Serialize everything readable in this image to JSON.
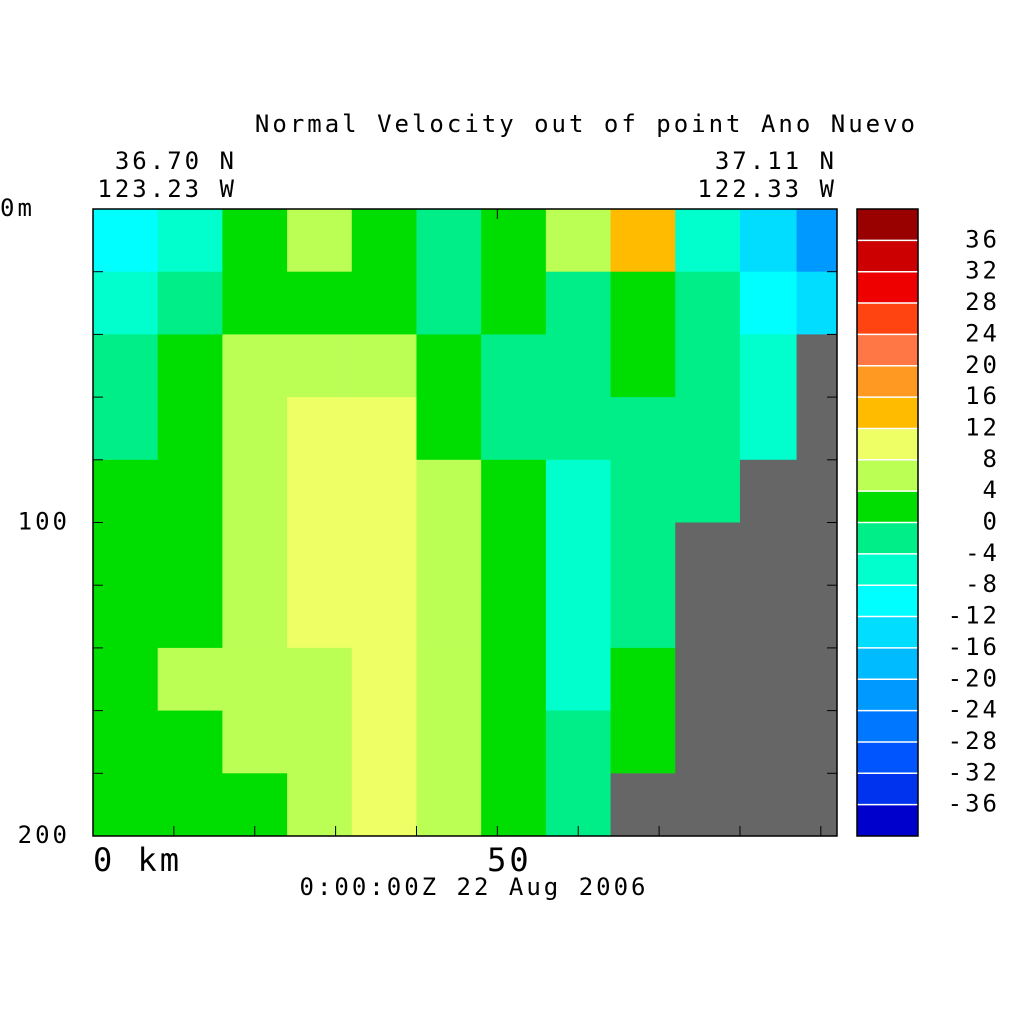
{
  "chart_data": {
    "type": "contour",
    "title": "Normal Velocity out of point Ano Nuevo",
    "time_label": "0:00:00Z  22 Aug 2006",
    "left_corner": [
      "36.70 N",
      "123.23 W"
    ],
    "right_corner": [
      "37.11 N",
      "122.33 W"
    ],
    "xlim": [
      0,
      92
    ],
    "xticks": [
      {
        "value": 0,
        "label": "0 km"
      },
      50
    ],
    "x_minor_ticks": [
      10,
      20,
      30,
      40,
      60,
      70,
      80,
      90
    ],
    "ylim": [
      0,
      200
    ],
    "yticks": [
      {
        "value": 0,
        "label": "0m"
      },
      100,
      200
    ],
    "y_minor_ticks": [
      20,
      40,
      60,
      80,
      120,
      140,
      160,
      180
    ],
    "x": [
      4,
      12,
      20,
      28,
      36,
      44,
      52,
      60,
      68,
      76,
      84,
      90
    ],
    "y": [
      10,
      30,
      50,
      70,
      90,
      110,
      130,
      150,
      170,
      190
    ],
    "z": [
      [
        -10,
        -6,
        2,
        6,
        2,
        -2,
        0,
        6,
        14,
        -6,
        -16,
        -24
      ],
      [
        -6,
        -2,
        2,
        2,
        0,
        -2,
        0,
        -2,
        2,
        -4,
        -12,
        -14
      ],
      [
        -4,
        2,
        6,
        6,
        6,
        2,
        -2,
        -4,
        0,
        -4,
        -8,
        null
      ],
      [
        -2,
        2,
        6,
        10,
        10,
        2,
        -2,
        -4,
        -2,
        -4,
        -6,
        null
      ],
      [
        0,
        2,
        6,
        10,
        10,
        6,
        2,
        -6,
        -2,
        -2,
        null,
        null
      ],
      [
        2,
        2,
        6,
        10,
        10,
        6,
        2,
        -6,
        -2,
        null,
        null,
        null
      ],
      [
        2,
        2,
        6,
        10,
        10,
        6,
        2,
        -6,
        -2,
        null,
        null,
        null
      ],
      [
        2,
        6,
        6,
        6,
        10,
        6,
        2,
        -6,
        0,
        null,
        null,
        null
      ],
      [
        2,
        2,
        6,
        6,
        10,
        6,
        2,
        -4,
        2,
        null,
        null,
        null
      ],
      [
        2,
        2,
        2,
        6,
        10,
        6,
        2,
        -4,
        null,
        null,
        null,
        null
      ]
    ],
    "land_color": "#666666",
    "levels": [
      -40,
      -36,
      -32,
      -28,
      -24,
      -20,
      -16,
      -12,
      -8,
      -4,
      0,
      4,
      8,
      12,
      16,
      20,
      24,
      28,
      32,
      36,
      40
    ],
    "colors": [
      "#0000cc",
      "#0033ee",
      "#0055ff",
      "#0077ff",
      "#0099ff",
      "#00bbff",
      "#00ddff",
      "#00ffff",
      "#00ffcc",
      "#00ee88",
      "#00dd00",
      "#bbff55",
      "#eeff66",
      "#ffbb00",
      "#ff9922",
      "#ff7744",
      "#ff4411",
      "#ee0000",
      "#cc0000",
      "#990000"
    ],
    "colorbar_ticks": [
      -36,
      -32,
      -28,
      -24,
      -20,
      -16,
      -12,
      -8,
      -4,
      0,
      4,
      8,
      12,
      16,
      20,
      24,
      28,
      32,
      36
    ]
  }
}
